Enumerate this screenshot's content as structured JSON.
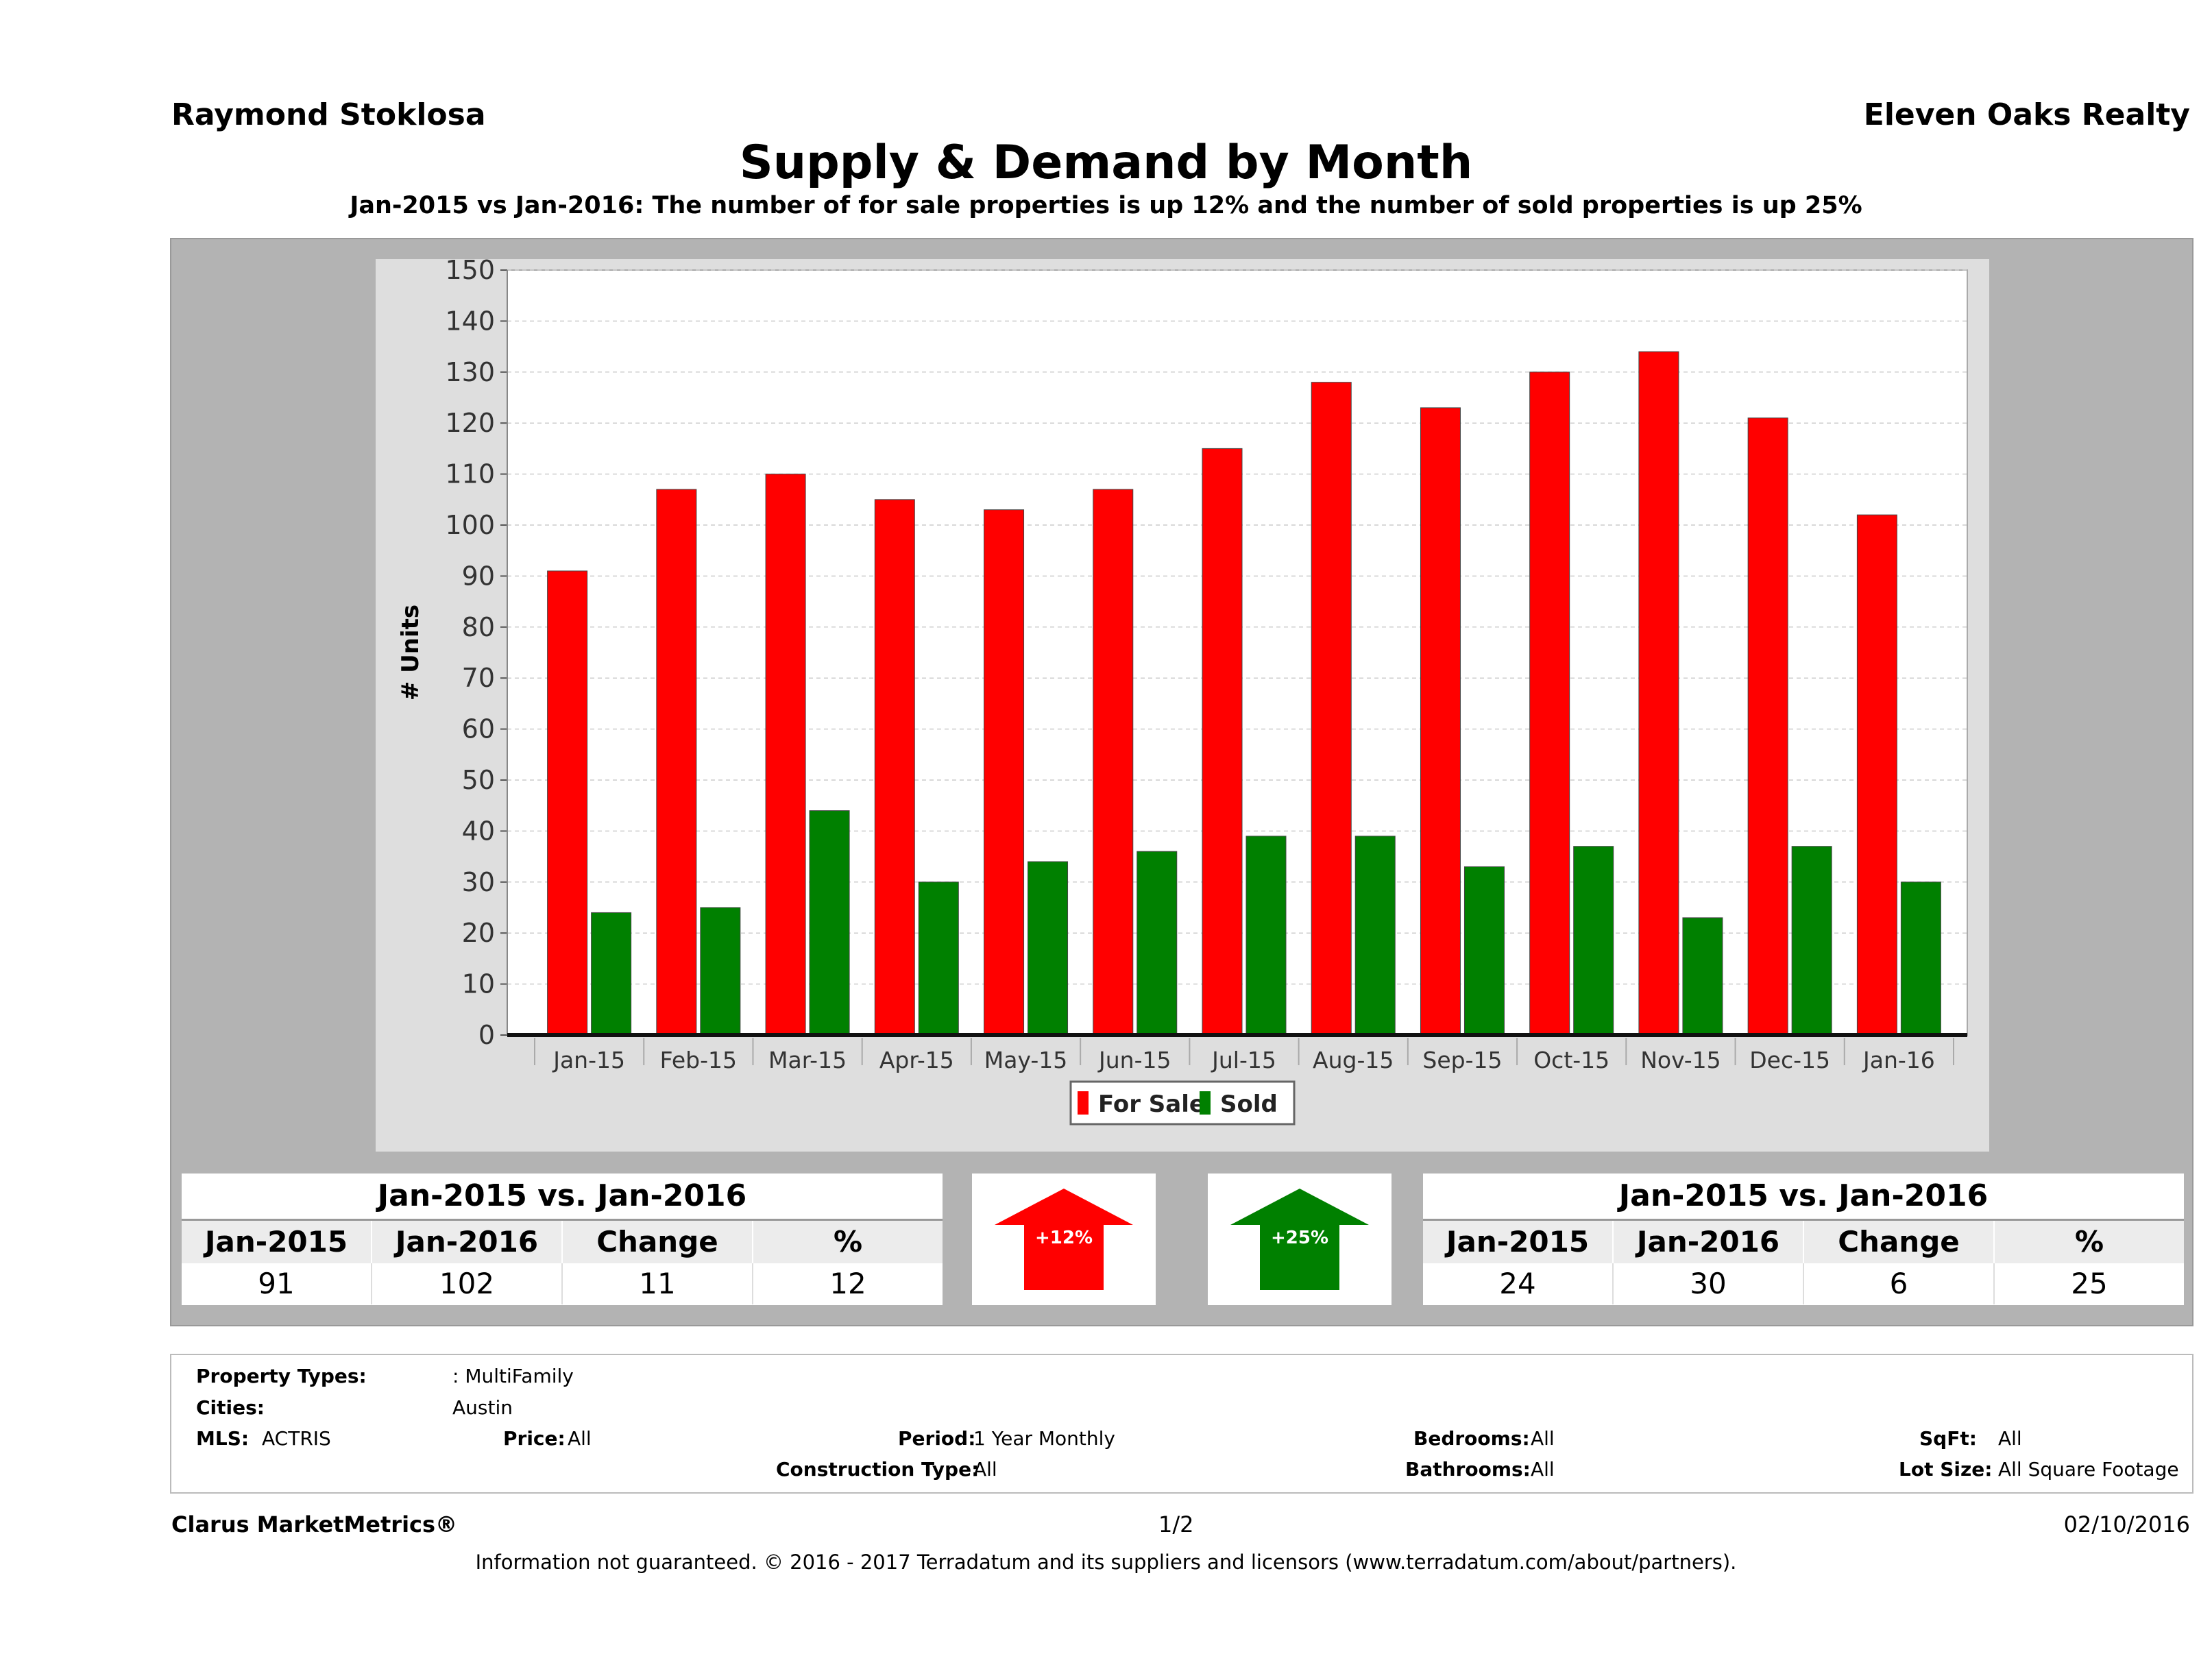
{
  "header": {
    "agent": "Raymond Stoklosa",
    "brokerage": "Eleven Oaks Realty"
  },
  "chart_data": {
    "type": "bar",
    "title": "Supply & Demand by Month",
    "subtitle": "Jan-2015 vs Jan-2016: The number of for sale properties is up 12% and the number of sold properties is up 25%",
    "ylabel": "# Units",
    "xlabel": "",
    "ylim": [
      0,
      150
    ],
    "yticks": [
      0,
      10,
      20,
      30,
      40,
      50,
      60,
      70,
      80,
      90,
      100,
      110,
      120,
      130,
      140,
      150
    ],
    "grid": true,
    "legend": "bottom-center",
    "categories": [
      "Jan-15",
      "Feb-15",
      "Mar-15",
      "Apr-15",
      "May-15",
      "Jun-15",
      "Jul-15",
      "Aug-15",
      "Sep-15",
      "Oct-15",
      "Nov-15",
      "Dec-15",
      "Jan-16"
    ],
    "series": [
      {
        "name": "For Sale",
        "color": "#ff0000",
        "values": [
          91,
          107,
          110,
          105,
          103,
          107,
          115,
          128,
          123,
          130,
          134,
          121,
          102
        ]
      },
      {
        "name": "Sold",
        "color": "#008000",
        "values": [
          24,
          25,
          44,
          30,
          34,
          36,
          39,
          39,
          33,
          37,
          23,
          37,
          30
        ]
      }
    ]
  },
  "summary_left": {
    "title": "Jan-2015 vs. Jan-2016",
    "columns": [
      "Jan-2015",
      "Jan-2016",
      "Change",
      "%"
    ],
    "values": [
      "91",
      "102",
      "11",
      "12"
    ]
  },
  "summary_right": {
    "title": "Jan-2015 vs. Jan-2016",
    "columns": [
      "Jan-2015",
      "Jan-2016",
      "Change",
      "%"
    ],
    "values": [
      "24",
      "30",
      "6",
      "25"
    ]
  },
  "arrows": {
    "left": {
      "label": "+12%",
      "color": "#ff0000",
      "icon": "arrow-up-icon"
    },
    "right": {
      "label": "+25%",
      "color": "#008000",
      "icon": "arrow-up-icon"
    }
  },
  "criteria": {
    "property_types_label": "Property Types:",
    "property_types_value": ": MultiFamily",
    "cities_label": "Cities:",
    "cities_value": "Austin",
    "mls_label": "MLS:",
    "mls_value": "ACTRIS",
    "price_label": "Price:",
    "price_value": "All",
    "period_label": "Period:",
    "period_value": "1 Year Monthly",
    "construction_label": "Construction Type:",
    "construction_value": "All",
    "bedrooms_label": "Bedrooms:",
    "bedrooms_value": "All",
    "bathrooms_label": "Bathrooms:",
    "bathrooms_value": "All",
    "sqft_label": "SqFt:",
    "sqft_value": "All",
    "lotsize_label": "Lot Size:",
    "lotsize_value": "All Square Footage"
  },
  "footer": {
    "brand": "Clarus MarketMetrics®",
    "page": "1/2",
    "date": "02/10/2016",
    "disclaimer": "Information not guaranteed. © 2016 - 2017 Terradatum and its suppliers and licensors (www.terradatum.com/about/partners)."
  }
}
